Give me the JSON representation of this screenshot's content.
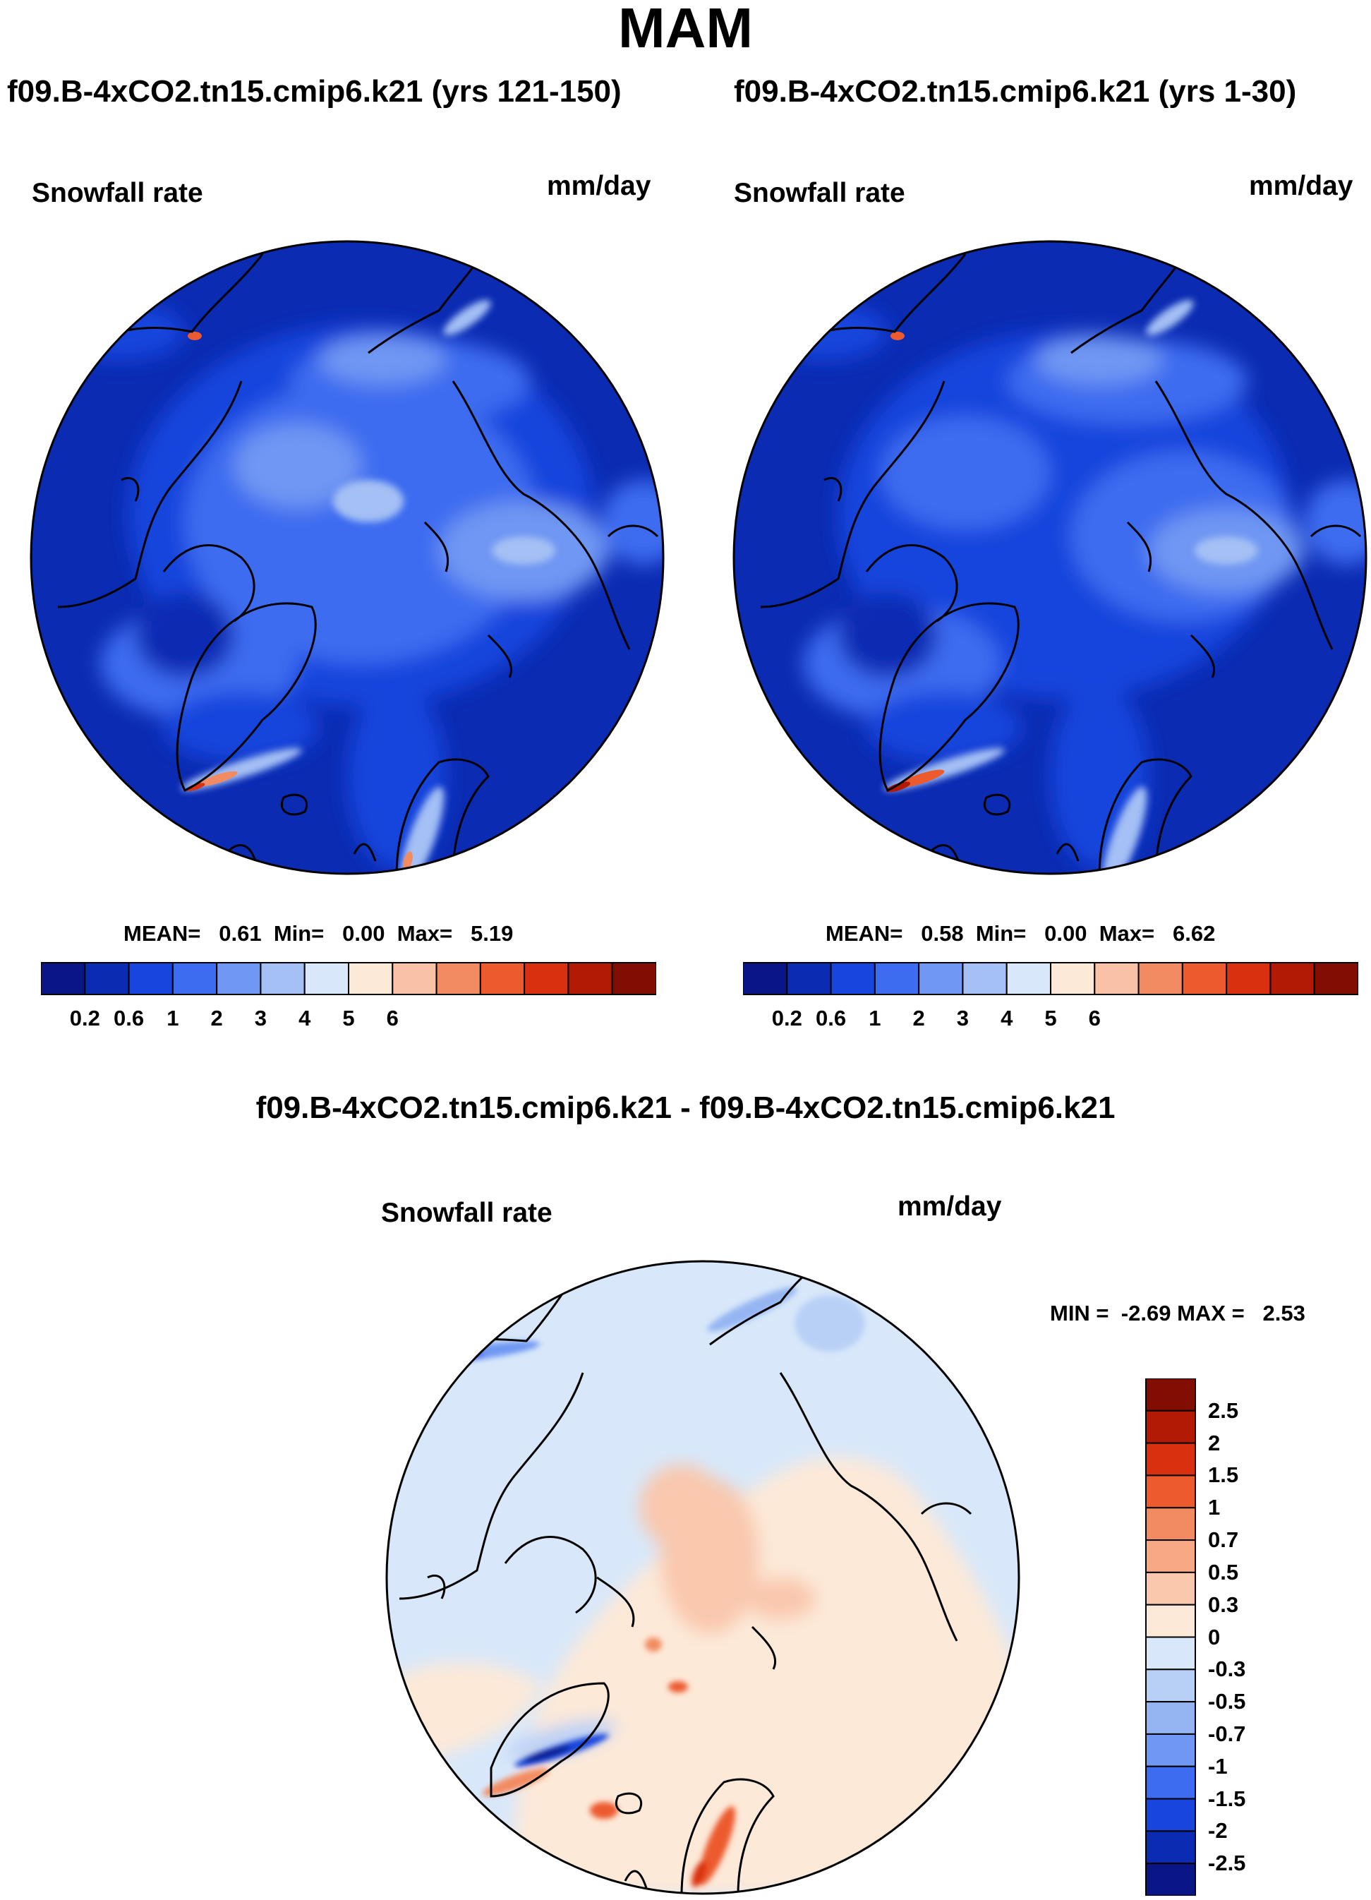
{
  "figure": {
    "title": "MAM",
    "diff_title": "f09.B-4xCO2.tn15.cmip6.k21 - f09.B-4xCO2.tn15.cmip6.k21"
  },
  "panels": [
    {
      "title": "f09.B-4xCO2.tn15.cmip6.k21 (yrs 121-150)",
      "variable": "Snowfall rate",
      "units": "mm/day",
      "stats": {
        "mean_label": "MEAN=",
        "mean": "0.61",
        "min_label": "Min=",
        "min": "0.00",
        "max_label": "Max=",
        "max": "5.19"
      }
    },
    {
      "title": "f09.B-4xCO2.tn15.cmip6.k21 (yrs 1-30)",
      "variable": "Snowfall rate",
      "units": "mm/day",
      "stats": {
        "mean_label": "MEAN=",
        "mean": "0.58",
        "min_label": "Min=",
        "min": "0.00",
        "max_label": "Max=",
        "max": "6.62"
      }
    },
    {
      "variable": "Snowfall rate",
      "units": "mm/day",
      "stats": {
        "min_label": "MIN =",
        "min": "-2.69",
        "max_label": "MAX =",
        "max": "2.53"
      }
    }
  ],
  "chart_data": [
    {
      "type": "heatmap",
      "title": "f09.B-4xCO2.tn15.cmip6.k21 (yrs 121-150)",
      "variable": "Snowfall rate",
      "units": "mm/day",
      "projection": "north polar stereographic",
      "mean": 0.61,
      "min": 0.0,
      "max": 5.19,
      "colorbar_ticks": [
        "0.2",
        "0.6",
        "1",
        "2",
        "3",
        "4",
        "5",
        "6"
      ],
      "colors": [
        "#0a1586",
        "#0b2bb3",
        "#1745dd",
        "#3e6cf0",
        "#6f97f3",
        "#a4c0f4",
        "#d8e8fa",
        "#fde9d8",
        "#f9c1a6",
        "#f28b61",
        "#ec5a2e",
        "#d9310f",
        "#b21a05",
        "#820d02"
      ]
    },
    {
      "type": "heatmap",
      "title": "f09.B-4xCO2.tn15.cmip6.k21 (yrs 1-30)",
      "variable": "Snowfall rate",
      "units": "mm/day",
      "projection": "north polar stereographic",
      "mean": 0.58,
      "min": 0.0,
      "max": 6.62,
      "colorbar_ticks": [
        "0.2",
        "0.6",
        "1",
        "2",
        "3",
        "4",
        "5",
        "6"
      ],
      "colors": [
        "#0a1586",
        "#0b2bb3",
        "#1745dd",
        "#3e6cf0",
        "#6f97f3",
        "#a4c0f4",
        "#d8e8fa",
        "#fde9d8",
        "#f9c1a6",
        "#f28b61",
        "#ec5a2e",
        "#d9310f",
        "#b21a05",
        "#820d02"
      ]
    },
    {
      "type": "heatmap",
      "title": "f09.B-4xCO2.tn15.cmip6.k21 - f09.B-4xCO2.tn15.cmip6.k21",
      "variable": "Snowfall rate",
      "units": "mm/day",
      "projection": "north polar stereographic",
      "min": -2.69,
      "max": 2.53,
      "colorbar_ticks": [
        "2.5",
        "2",
        "1.5",
        "1",
        "0.7",
        "0.5",
        "0.3",
        "0",
        "-0.3",
        "-0.5",
        "-0.7",
        "-1",
        "-1.5",
        "-2",
        "-2.5"
      ],
      "colors": [
        "#820d02",
        "#b21a05",
        "#d9310f",
        "#ec5a2e",
        "#f28b61",
        "#f9a884",
        "#f9c8ad",
        "#fde9d8",
        "#d8e8fa",
        "#b9d0f6",
        "#95b5f2",
        "#6f97f3",
        "#3e6cf0",
        "#1745dd",
        "#0b2bb3",
        "#0a1586"
      ]
    }
  ]
}
